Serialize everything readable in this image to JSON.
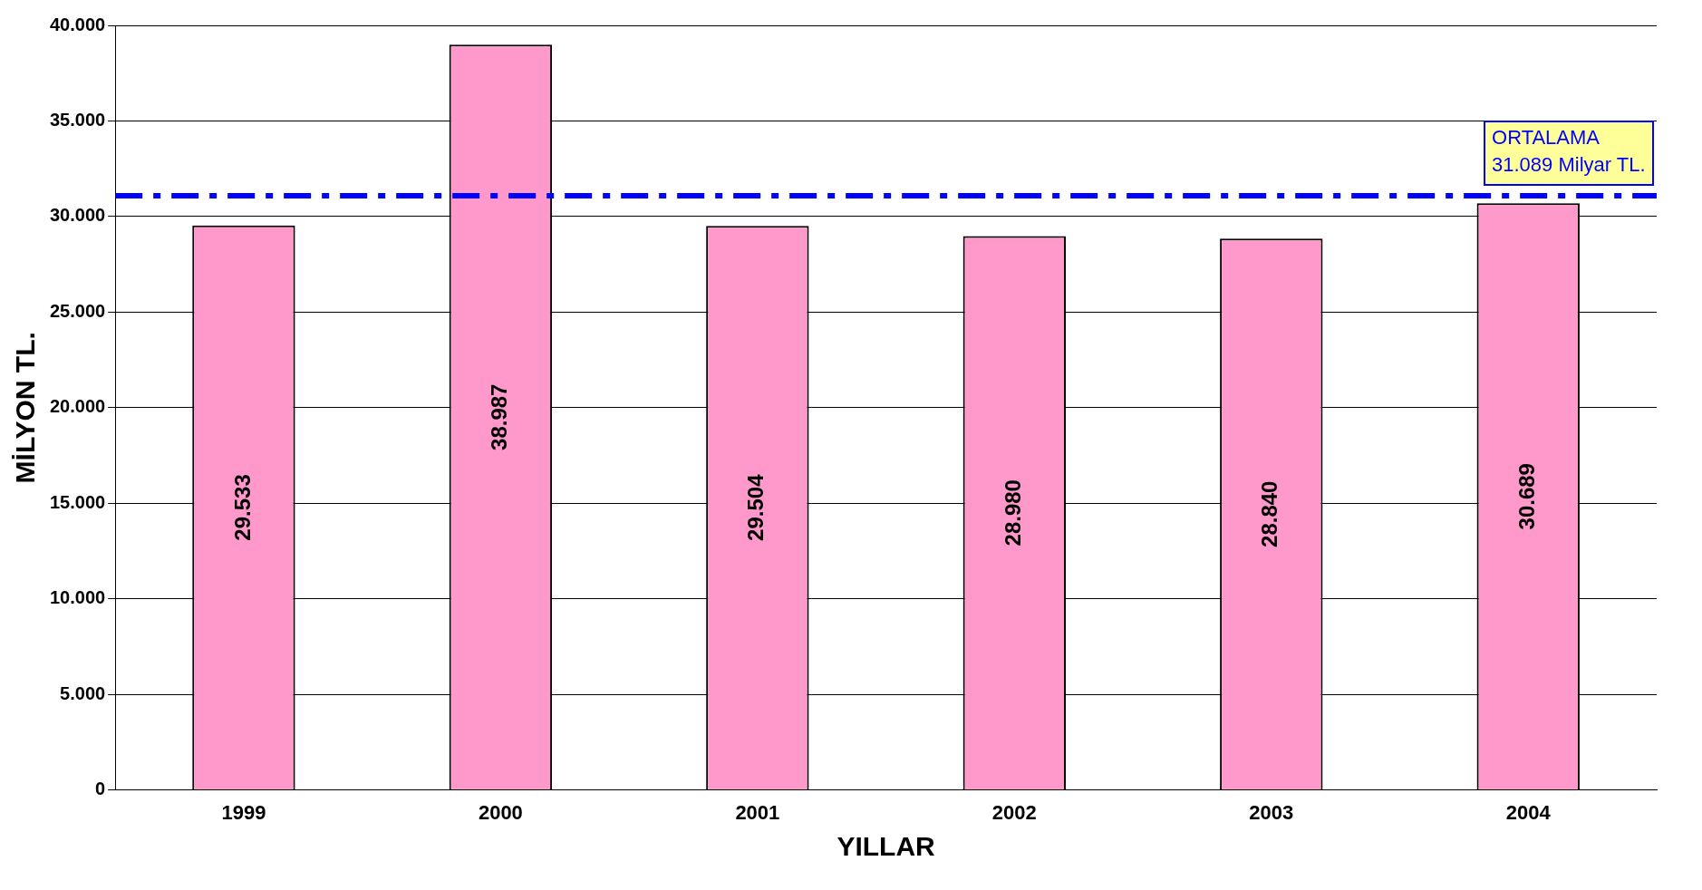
{
  "chart_data": {
    "type": "bar",
    "xlabel": "YILLAR",
    "ylabel": "MİLYON TL.",
    "categories": [
      "1999",
      "2000",
      "2001",
      "2002",
      "2003",
      "2004"
    ],
    "values": [
      29533,
      38987,
      29504,
      28980,
      28840,
      30689
    ],
    "value_labels": [
      "29.533",
      "38.987",
      "29.504",
      "28.980",
      "28.840",
      "30.689"
    ],
    "color": "#ff99cc",
    "ylim": [
      0,
      40000
    ],
    "yticks": [
      {
        "value": 0,
        "label": "0"
      },
      {
        "value": 5000,
        "label": "5.000"
      },
      {
        "value": 10000,
        "label": "10.000"
      },
      {
        "value": 15000,
        "label": "15.000"
      },
      {
        "value": 20000,
        "label": "20.000"
      },
      {
        "value": 25000,
        "label": "25.000"
      },
      {
        "value": 30000,
        "label": "30.000"
      },
      {
        "value": 35000,
        "label": "35.000"
      },
      {
        "value": 40000,
        "label": "40.000"
      }
    ],
    "grid": "y",
    "legend": false,
    "ref_lines": [
      {
        "axis": "y",
        "value": 31089,
        "label": "ORTALAMA\n31.089 Milyar TL.",
        "color": "#0000ff",
        "line_style": "dashed"
      }
    ]
  }
}
